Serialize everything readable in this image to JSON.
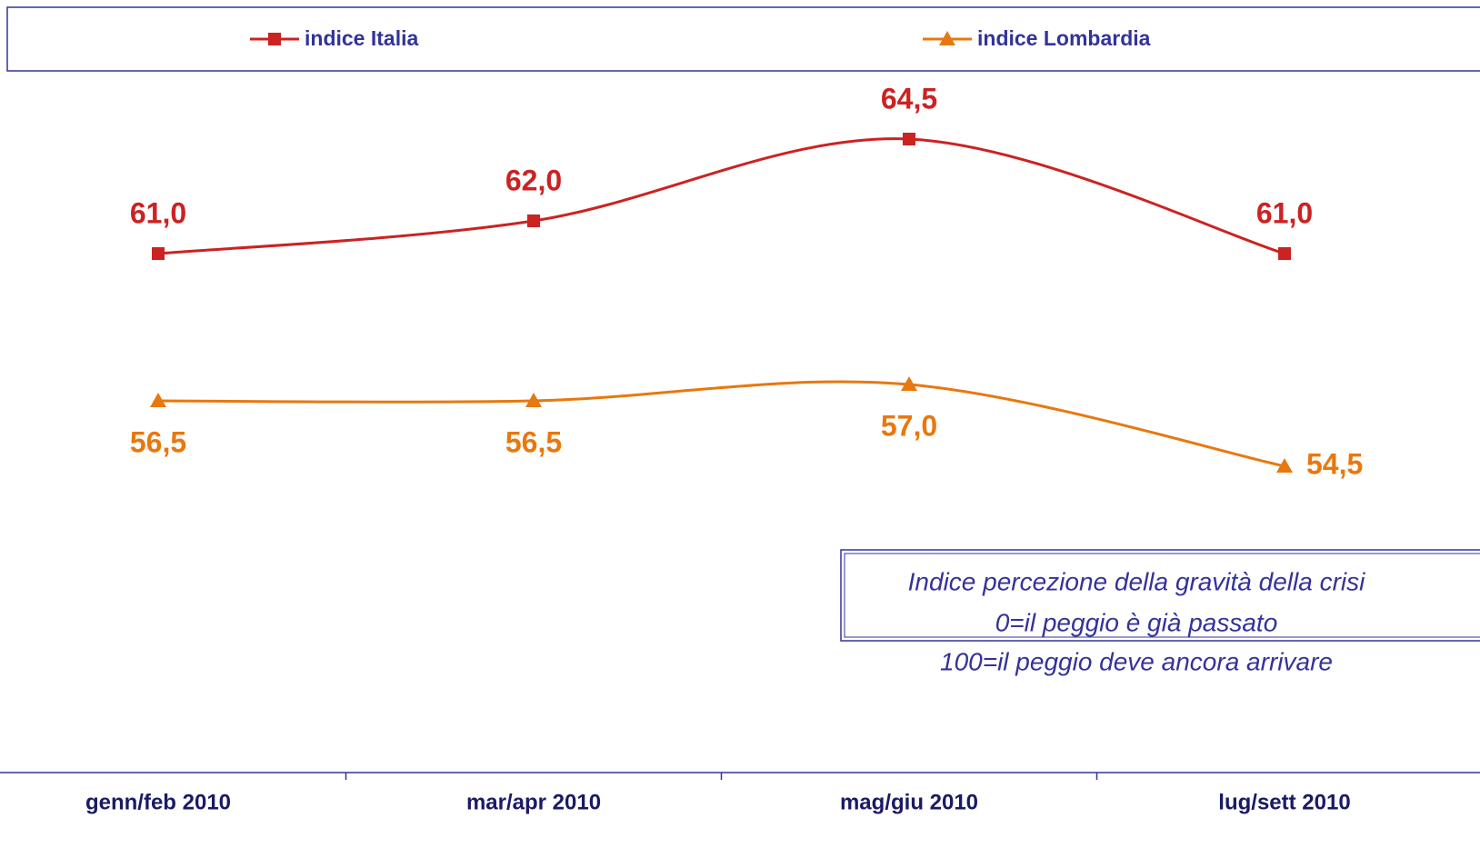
{
  "chart_data": {
    "type": "line",
    "categories": [
      "genn/feb 2010",
      "mar/apr 2010",
      "mag/giu 2010",
      "lug/sett 2010"
    ],
    "series": [
      {
        "name": "indice Italia",
        "color": "#cc2222",
        "marker": "square",
        "values": [
          61.0,
          62.0,
          64.5,
          61.0
        ],
        "value_labels": [
          "61,0",
          "62,0",
          "64,5",
          "61,0"
        ]
      },
      {
        "name": "indice Lombardia",
        "color": "#e8780e",
        "marker": "triangle",
        "values": [
          56.5,
          56.5,
          57.0,
          54.5
        ],
        "value_labels": [
          "56,5",
          "56,5",
          "57,0",
          "54,5"
        ]
      }
    ],
    "ylim": [
      45,
      67
    ],
    "annotation": [
      "Indice percezione della gravità della crisi",
      "0=il peggio è già passato",
      "100=il peggio deve ancora arrivare"
    ]
  }
}
